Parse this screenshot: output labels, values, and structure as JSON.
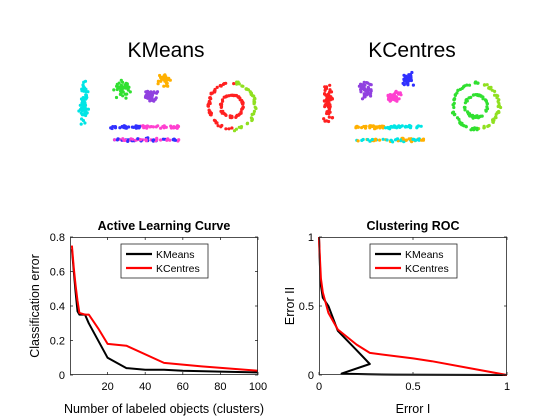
{
  "scatter_panels": [
    {
      "title": "KMeans",
      "colors": [
        "#00e5e5",
        "#3030ff",
        "#ff40d0",
        "#30e030",
        "#9040e0",
        "#ffb000",
        "#ff2020",
        "#90e020"
      ]
    },
    {
      "title": "KCentres",
      "colors": [
        "#ff2020",
        "#ffb000",
        "#00e5e5",
        "#9040e0",
        "#ff40d0",
        "#3030ff",
        "#30e030",
        "#90e020"
      ]
    }
  ],
  "chart_data": [
    {
      "type": "line",
      "title": "Active Learning Curve",
      "xlabel": "Number of labeled objects (clusters)",
      "ylabel": "Classification error",
      "xlim": [
        0,
        100
      ],
      "ylim": [
        0,
        0.8
      ],
      "xticks": [
        20,
        40,
        60,
        80,
        100
      ],
      "yticks": [
        0,
        0.2,
        0.4,
        0.6,
        0.8
      ],
      "xtick_labels": [
        "20",
        "40",
        "60",
        "80",
        "100"
      ],
      "ytick_labels": [
        "0",
        "0.2",
        "0.4",
        "0.6",
        "0.8"
      ],
      "legend": "top-center",
      "series": [
        {
          "name": "KMeans",
          "color": "#000000",
          "x": [
            1,
            2,
            3,
            4,
            5,
            8,
            10,
            20,
            30,
            40,
            50,
            60,
            80,
            100
          ],
          "y": [
            0.73,
            0.6,
            0.48,
            0.37,
            0.35,
            0.35,
            0.3,
            0.1,
            0.04,
            0.03,
            0.03,
            0.025,
            0.02,
            0.015
          ]
        },
        {
          "name": "KCentres",
          "color": "#ff0000",
          "x": [
            1,
            2,
            3,
            4,
            5,
            8,
            10,
            15,
            20,
            30,
            50,
            70,
            100
          ],
          "y": [
            0.75,
            0.62,
            0.52,
            0.43,
            0.36,
            0.35,
            0.35,
            0.27,
            0.18,
            0.17,
            0.07,
            0.05,
            0.025
          ]
        }
      ]
    },
    {
      "type": "line",
      "title": "Clustering ROC",
      "xlabel": "Error I",
      "ylabel": "Error II",
      "xlim": [
        0,
        1
      ],
      "ylim": [
        0,
        1
      ],
      "xticks": [
        0,
        0.5,
        1
      ],
      "yticks": [
        0,
        0.5,
        1
      ],
      "xtick_labels": [
        "0",
        "0.5",
        "1"
      ],
      "ytick_labels": [
        "0",
        "0.5",
        "1"
      ],
      "legend": "top-center",
      "series": [
        {
          "name": "KMeans",
          "color": "#000000",
          "x": [
            0,
            0.005,
            0.01,
            0.02,
            0.05,
            0.1,
            0.2,
            0.27,
            0.12,
            0.26,
            0.4,
            0.6,
            0.8,
            1.0
          ],
          "y": [
            1.0,
            0.8,
            0.65,
            0.56,
            0.5,
            0.32,
            0.18,
            0.08,
            0.01,
            0.005,
            0.003,
            0.002,
            0.001,
            0.0
          ]
        },
        {
          "name": "KCentres",
          "color": "#ff0000",
          "x": [
            0,
            0.005,
            0.01,
            0.02,
            0.05,
            0.1,
            0.2,
            0.27,
            0.5,
            0.6,
            0.8,
            1.0
          ],
          "y": [
            1.0,
            0.85,
            0.7,
            0.6,
            0.45,
            0.33,
            0.22,
            0.16,
            0.12,
            0.1,
            0.05,
            0.0
          ]
        }
      ]
    }
  ]
}
